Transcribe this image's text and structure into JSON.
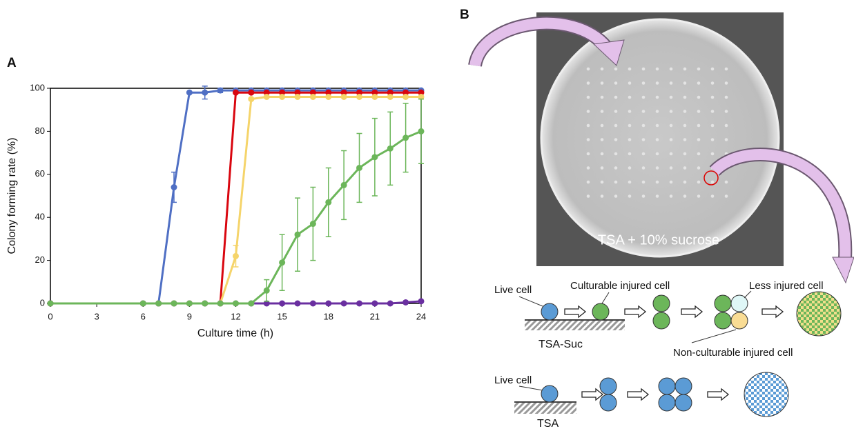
{
  "chart_data": {
    "type": "line",
    "panel_label": "A",
    "xlabel": "Culture time (h)",
    "ylabel": "Colony forming rate (%)",
    "x": [
      0,
      6,
      7,
      8,
      9,
      10,
      11,
      12,
      13,
      14,
      15,
      16,
      17,
      18,
      19,
      20,
      21,
      22,
      23,
      24
    ],
    "xlim": [
      0,
      24
    ],
    "xticks": [
      0,
      3,
      6,
      9,
      12,
      15,
      18,
      21,
      24
    ],
    "ylim": [
      0,
      100
    ],
    "yticks": [
      0,
      20,
      40,
      60,
      80,
      100
    ],
    "series": [
      {
        "color": "#4f6fc4",
        "values": [
          0,
          0,
          0,
          54,
          98,
          98,
          99,
          99,
          99,
          99,
          99,
          99,
          99,
          99,
          99,
          99,
          99,
          99,
          99,
          99
        ],
        "errors": [
          null,
          null,
          null,
          7,
          null,
          3,
          1,
          null,
          null,
          null,
          null,
          null,
          null,
          null,
          null,
          null,
          null,
          null,
          null,
          null
        ]
      },
      {
        "color": "#d9060f",
        "values": [
          0,
          0,
          0,
          0,
          0,
          0,
          0,
          98,
          98,
          98,
          98,
          98,
          98,
          98,
          98,
          98,
          98,
          98,
          98,
          98
        ],
        "errors": [
          null,
          null,
          null,
          null,
          null,
          null,
          null,
          null,
          null,
          null,
          null,
          null,
          null,
          null,
          null,
          null,
          null,
          null,
          null,
          null
        ]
      },
      {
        "color": "#f5d46a",
        "values": [
          0,
          0,
          0,
          0,
          0,
          0,
          0,
          22,
          95,
          96,
          96,
          96,
          96,
          96,
          96,
          96,
          96,
          96,
          96,
          96
        ],
        "errors": [
          null,
          null,
          null,
          null,
          null,
          null,
          null,
          5,
          null,
          null,
          null,
          null,
          null,
          null,
          null,
          null,
          null,
          null,
          null,
          null
        ]
      },
      {
        "color": "#6a2fa0",
        "values": [
          0,
          0,
          0,
          0,
          0,
          0,
          0,
          0,
          0,
          0,
          0,
          0,
          0,
          0,
          0,
          0,
          0,
          0,
          0.5,
          1
        ],
        "errors": [
          null,
          null,
          null,
          null,
          null,
          null,
          null,
          null,
          null,
          null,
          null,
          null,
          null,
          null,
          null,
          null,
          null,
          null,
          null,
          null
        ]
      },
      {
        "color": "#6cb65a",
        "values": [
          0,
          0,
          0,
          0,
          0,
          0,
          0,
          0,
          0,
          6,
          19,
          32,
          37,
          47,
          55,
          63,
          68,
          72,
          77,
          80
        ],
        "errors": [
          null,
          null,
          null,
          null,
          null,
          null,
          null,
          null,
          null,
          5,
          13,
          17,
          17,
          16,
          16,
          16,
          18,
          17,
          16,
          15
        ]
      }
    ]
  },
  "panel_b": {
    "label": "B",
    "plate_label": "TSA + 10% sucrose",
    "row1": {
      "live_cell": "Live cell",
      "culturable": "Culturable injured cell",
      "less_injured": "Less injured cell",
      "non_culturable": "Non-culturable injured cell",
      "medium": "TSA-Suc"
    },
    "row2": {
      "live_cell": "Live cell",
      "medium": "TSA"
    }
  }
}
